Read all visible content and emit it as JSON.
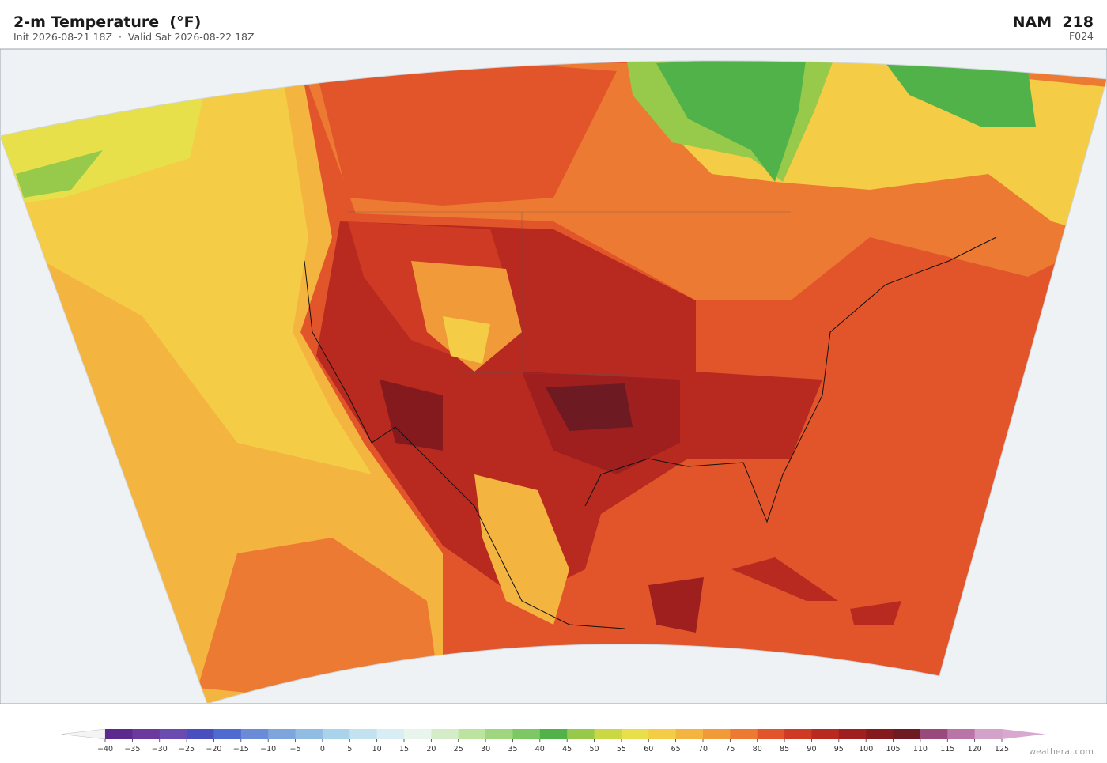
{
  "header": {
    "title": "2-m Temperature  (°F)",
    "subtitle": "Init 2026-08-21 18Z  ·  Valid Sat 2026-08-22 18Z",
    "model": "NAM  218",
    "forecast_hour": "F024"
  },
  "colorbar": {
    "ticks": [
      {
        "value": -40,
        "label": "−40"
      },
      {
        "value": -35,
        "label": "−35"
      },
      {
        "value": -30,
        "label": "−30"
      },
      {
        "value": -25,
        "label": "−25"
      },
      {
        "value": -20,
        "label": "−20"
      },
      {
        "value": -15,
        "label": "−15"
      },
      {
        "value": -10,
        "label": "−10"
      },
      {
        "value": -5,
        "label": "−5"
      },
      0,
      5,
      10,
      15,
      20,
      25,
      30,
      35,
      40,
      45,
      50,
      55,
      60,
      65,
      70,
      75,
      80,
      85,
      90,
      95,
      100,
      105,
      110,
      115,
      120,
      125
    ],
    "colors": [
      "#5b2a8c",
      "#6b3a9c",
      "#6a4cb0",
      "#4a4fc0",
      "#4f6bd0",
      "#6b8ad8",
      "#7fa6dc",
      "#92bde2",
      "#a9d3ea",
      "#c3e2f0",
      "#d8eef4",
      "#e8f5ec",
      "#d5ecc8",
      "#bde3a0",
      "#9fd67f",
      "#7ec765",
      "#52b24a",
      "#97c94a",
      "#cad845",
      "#e8e04a",
      "#f4cc45",
      "#f4b440",
      "#f09a3a",
      "#ec7a32",
      "#e2552a",
      "#cf3a24",
      "#b82a20",
      "#9e1f1e",
      "#851a1e",
      "#6d1a22",
      "#9a4a7a",
      "#b974a8",
      "#d2a2c8"
    ],
    "under_color": "#f4f4f4",
    "over_color": "#d9a8d0"
  },
  "footer": {
    "watermark": "weatherai.com"
  }
}
